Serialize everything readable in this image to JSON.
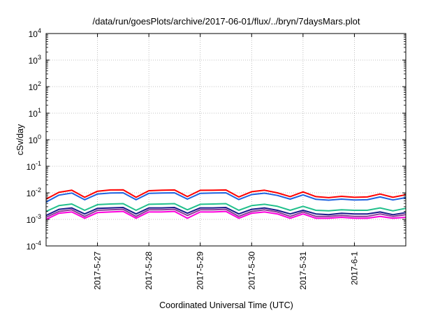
{
  "chart_data": {
    "type": "line",
    "title": "/data/run/goesPlots/archive/2017-06-01/flux/../bryn/7daysMars.plot",
    "xlabel": "Coordinated Universal Time (UTC)",
    "ylabel": "cSv/day",
    "yscale": "log",
    "ylim": [
      0.0001,
      10000
    ],
    "xlim": [
      "2017-05-26T00:00",
      "2017-06-02T00:00"
    ],
    "grid": true,
    "legend": "none",
    "y_tick_labels": [
      {
        "base": "10",
        "exp": "-4"
      },
      {
        "base": "10",
        "exp": "-3"
      },
      {
        "base": "10",
        "exp": "-2"
      },
      {
        "base": "10",
        "exp": "-1"
      },
      {
        "base": "10",
        "exp": "0"
      },
      {
        "base": "10",
        "exp": "1"
      },
      {
        "base": "10",
        "exp": "2"
      },
      {
        "base": "10",
        "exp": "3"
      },
      {
        "base": "10",
        "exp": "4"
      }
    ],
    "x_ticks": [
      {
        "label": "2017-5-27",
        "x": "2017-05-27T00:00"
      },
      {
        "label": "2017-5-28",
        "x": "2017-05-28T00:00"
      },
      {
        "label": "2017-5-29",
        "x": "2017-05-29T00:00"
      },
      {
        "label": "2017-5-30",
        "x": "2017-05-30T00:00"
      },
      {
        "label": "2017-5-31",
        "x": "2017-05-31T00:00"
      },
      {
        "label": "2017-6-1",
        "x": "2017-06-01T00:00"
      }
    ],
    "series": [
      {
        "color": "#ff0000",
        "x": [
          "2017-05-26T00:00",
          "2017-05-26T06:00",
          "2017-05-26T12:00",
          "2017-05-26T18:00",
          "2017-05-27T00:00",
          "2017-05-27T06:00",
          "2017-05-27T12:00",
          "2017-05-27T18:00",
          "2017-05-28T00:00",
          "2017-05-28T06:00",
          "2017-05-28T12:00",
          "2017-05-28T18:00",
          "2017-05-29T00:00",
          "2017-05-29T06:00",
          "2017-05-29T12:00",
          "2017-05-29T18:00",
          "2017-05-30T00:00",
          "2017-05-30T06:00",
          "2017-05-30T12:00",
          "2017-05-30T18:00",
          "2017-05-31T00:00",
          "2017-05-31T06:00",
          "2017-05-31T12:00",
          "2017-05-31T18:00",
          "2017-06-01T00:00",
          "2017-06-01T06:00",
          "2017-06-01T12:00",
          "2017-06-01T18:00",
          "2017-06-02T00:00"
        ],
        "values": [
          0.0058,
          0.0105,
          0.0125,
          0.0068,
          0.0115,
          0.0128,
          0.013,
          0.0068,
          0.012,
          0.0125,
          0.0128,
          0.0072,
          0.0124,
          0.0126,
          0.0128,
          0.007,
          0.011,
          0.0125,
          0.01,
          0.0072,
          0.0108,
          0.0072,
          0.0066,
          0.0074,
          0.0068,
          0.007,
          0.009,
          0.0068,
          0.0085
        ]
      },
      {
        "color": "#1f63e0",
        "x": [
          "2017-05-26T00:00",
          "2017-05-26T06:00",
          "2017-05-26T12:00",
          "2017-05-26T18:00",
          "2017-05-27T00:00",
          "2017-05-27T06:00",
          "2017-05-27T12:00",
          "2017-05-27T18:00",
          "2017-05-28T00:00",
          "2017-05-28T06:00",
          "2017-05-28T12:00",
          "2017-05-28T18:00",
          "2017-05-29T00:00",
          "2017-05-29T06:00",
          "2017-05-29T12:00",
          "2017-05-29T18:00",
          "2017-05-30T00:00",
          "2017-05-30T06:00",
          "2017-05-30T12:00",
          "2017-05-30T18:00",
          "2017-05-31T00:00",
          "2017-05-31T06:00",
          "2017-05-31T12:00",
          "2017-05-31T18:00",
          "2017-06-01T00:00",
          "2017-06-01T06:00",
          "2017-06-01T12:00",
          "2017-06-01T18:00",
          "2017-06-02T00:00"
        ],
        "values": [
          0.0045,
          0.0082,
          0.0098,
          0.0055,
          0.009,
          0.0098,
          0.01,
          0.0055,
          0.0095,
          0.0098,
          0.01,
          0.0058,
          0.0096,
          0.0098,
          0.01,
          0.0056,
          0.0086,
          0.0097,
          0.008,
          0.0058,
          0.0084,
          0.0057,
          0.0053,
          0.0058,
          0.0054,
          0.0055,
          0.007,
          0.0054,
          0.0066
        ]
      },
      {
        "color": "#22c08c",
        "x": [
          "2017-05-26T00:00",
          "2017-05-26T06:00",
          "2017-05-26T12:00",
          "2017-05-26T18:00",
          "2017-05-27T00:00",
          "2017-05-27T06:00",
          "2017-05-27T12:00",
          "2017-05-27T18:00",
          "2017-05-28T00:00",
          "2017-05-28T06:00",
          "2017-05-28T12:00",
          "2017-05-28T18:00",
          "2017-05-29T00:00",
          "2017-05-29T06:00",
          "2017-05-29T12:00",
          "2017-05-29T18:00",
          "2017-05-30T00:00",
          "2017-05-30T06:00",
          "2017-05-30T12:00",
          "2017-05-30T18:00",
          "2017-05-31T00:00",
          "2017-05-31T06:00",
          "2017-05-31T12:00",
          "2017-05-31T18:00",
          "2017-06-01T00:00",
          "2017-06-01T06:00",
          "2017-06-01T12:00",
          "2017-06-01T18:00",
          "2017-06-02T00:00"
        ],
        "values": [
          0.002,
          0.0033,
          0.0038,
          0.0022,
          0.0036,
          0.0038,
          0.0039,
          0.0022,
          0.0037,
          0.0038,
          0.0039,
          0.0023,
          0.0037,
          0.0038,
          0.0039,
          0.0022,
          0.0033,
          0.0037,
          0.0031,
          0.0022,
          0.0031,
          0.0022,
          0.0021,
          0.0023,
          0.0022,
          0.0022,
          0.0027,
          0.0021,
          0.0026
        ]
      },
      {
        "color": "#1a1a8c",
        "x": [
          "2017-05-26T00:00",
          "2017-05-26T06:00",
          "2017-05-26T12:00",
          "2017-05-26T18:00",
          "2017-05-27T00:00",
          "2017-05-27T06:00",
          "2017-05-27T12:00",
          "2017-05-27T18:00",
          "2017-05-28T00:00",
          "2017-05-28T06:00",
          "2017-05-28T12:00",
          "2017-05-28T18:00",
          "2017-05-29T00:00",
          "2017-05-29T06:00",
          "2017-05-29T12:00",
          "2017-05-29T18:00",
          "2017-05-30T00:00",
          "2017-05-30T06:00",
          "2017-05-30T12:00",
          "2017-05-30T18:00",
          "2017-05-31T00:00",
          "2017-05-31T06:00",
          "2017-05-31T12:00",
          "2017-05-31T18:00",
          "2017-06-01T00:00",
          "2017-06-01T06:00",
          "2017-06-01T12:00",
          "2017-06-01T18:00",
          "2017-06-02T00:00"
        ],
        "values": [
          0.0014,
          0.0024,
          0.0027,
          0.0016,
          0.0026,
          0.0027,
          0.0028,
          0.0016,
          0.0027,
          0.0027,
          0.0028,
          0.0017,
          0.0027,
          0.0027,
          0.0028,
          0.0016,
          0.0024,
          0.0027,
          0.0022,
          0.0016,
          0.0022,
          0.0016,
          0.0015,
          0.0017,
          0.0016,
          0.0016,
          0.0019,
          0.0015,
          0.0018
        ]
      },
      {
        "color": "#8a3a96",
        "x": [
          "2017-05-26T00:00",
          "2017-05-26T06:00",
          "2017-05-26T12:00",
          "2017-05-26T18:00",
          "2017-05-27T00:00",
          "2017-05-27T06:00",
          "2017-05-27T12:00",
          "2017-05-27T18:00",
          "2017-05-28T00:00",
          "2017-05-28T06:00",
          "2017-05-28T12:00",
          "2017-05-28T18:00",
          "2017-05-29T00:00",
          "2017-05-29T06:00",
          "2017-05-29T12:00",
          "2017-05-29T18:00",
          "2017-05-30T00:00",
          "2017-05-30T06:00",
          "2017-05-30T12:00",
          "2017-05-30T18:00",
          "2017-05-31T00:00",
          "2017-05-31T06:00",
          "2017-05-31T12:00",
          "2017-05-31T18:00",
          "2017-06-01T00:00",
          "2017-06-01T06:00",
          "2017-06-01T12:00",
          "2017-06-01T18:00",
          "2017-06-02T00:00"
        ],
        "values": [
          0.0012,
          0.002,
          0.0023,
          0.0013,
          0.0022,
          0.0023,
          0.0024,
          0.0013,
          0.0023,
          0.0023,
          0.0024,
          0.0014,
          0.0023,
          0.0023,
          0.0024,
          0.0013,
          0.002,
          0.0023,
          0.0019,
          0.0013,
          0.0019,
          0.0013,
          0.0013,
          0.0014,
          0.0013,
          0.0013,
          0.0016,
          0.0013,
          0.0015
        ]
      },
      {
        "color": "#ff00dd",
        "x": [
          "2017-05-26T00:00",
          "2017-05-26T06:00",
          "2017-05-26T12:00",
          "2017-05-26T18:00",
          "2017-05-27T00:00",
          "2017-05-27T06:00",
          "2017-05-27T12:00",
          "2017-05-27T18:00",
          "2017-05-28T00:00",
          "2017-05-28T06:00",
          "2017-05-28T12:00",
          "2017-05-28T18:00",
          "2017-05-29T00:00",
          "2017-05-29T06:00",
          "2017-05-29T12:00",
          "2017-05-29T18:00",
          "2017-05-30T00:00",
          "2017-05-30T06:00",
          "2017-05-30T12:00",
          "2017-05-30T18:00",
          "2017-05-31T00:00",
          "2017-05-31T06:00",
          "2017-05-31T12:00",
          "2017-05-31T18:00",
          "2017-06-01T00:00",
          "2017-06-01T06:00",
          "2017-06-01T12:00",
          "2017-06-01T18:00",
          "2017-06-02T00:00"
        ],
        "values": [
          0.001,
          0.0017,
          0.0019,
          0.0011,
          0.0018,
          0.0019,
          0.002,
          0.0011,
          0.0019,
          0.0019,
          0.002,
          0.0011,
          0.0019,
          0.0019,
          0.002,
          0.0011,
          0.0017,
          0.0019,
          0.0016,
          0.0011,
          0.0016,
          0.0011,
          0.0011,
          0.0012,
          0.0011,
          0.0011,
          0.0013,
          0.0011,
          0.0012
        ]
      }
    ]
  }
}
